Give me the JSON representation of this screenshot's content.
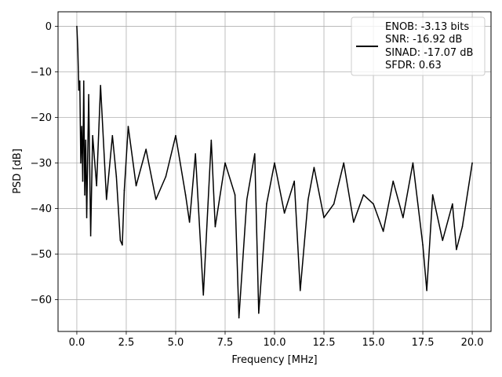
{
  "chart_data": {
    "type": "line",
    "title": "",
    "xlabel": "Frequency [MHz]",
    "ylabel": "PSD [dB]",
    "xlim": [
      -0.95,
      20.95
    ],
    "ylim": [
      -67.0,
      3.2
    ],
    "x_ticks": [
      0.0,
      2.5,
      5.0,
      7.5,
      10.0,
      12.5,
      15.0,
      17.5,
      20.0
    ],
    "x_tick_labels": [
      "0.0",
      "2.5",
      "5.0",
      "7.5",
      "10.0",
      "12.5",
      "15.0",
      "17.5",
      "20.0"
    ],
    "y_ticks": [
      0,
      -10,
      -20,
      -30,
      -40,
      -50,
      -60
    ],
    "y_tick_labels": [
      "0",
      "−10",
      "−20",
      "−30",
      "−40",
      "−50",
      "−60"
    ],
    "grid": true,
    "legend_position": "top-right",
    "line_color": "#000000",
    "series": [
      {
        "name": "ENOB: -3.13 bits",
        "legend_lines": [
          "ENOB: -3.13 bits",
          "SNR: -16.92 dB",
          "SINAD: -17.07 dB",
          "SFDR: 0.63"
        ],
        "x": [
          0.0,
          0.05,
          0.1,
          0.15,
          0.2,
          0.25,
          0.3,
          0.35,
          0.4,
          0.45,
          0.5,
          0.6,
          0.7,
          0.8,
          1.0,
          1.2,
          1.5,
          1.8,
          2.0,
          2.2,
          2.3,
          2.4,
          2.6,
          3.0,
          3.5,
          4.0,
          4.5,
          5.0,
          5.5,
          5.7,
          6.0,
          6.4,
          6.8,
          7.0,
          7.5,
          8.0,
          8.2,
          8.6,
          9.0,
          9.2,
          9.6,
          10.0,
          10.5,
          11.0,
          11.3,
          11.7,
          12.0,
          12.5,
          13.0,
          13.5,
          14.0,
          14.5,
          15.0,
          15.5,
          16.0,
          16.5,
          17.0,
          17.5,
          17.7,
          18.0,
          18.5,
          19.0,
          19.2,
          19.5,
          20.0
        ],
        "y": [
          0.0,
          -5.0,
          -14.0,
          -12.0,
          -30.0,
          -22.0,
          -34.0,
          -12.0,
          -37.0,
          -25.0,
          -42.0,
          -15.0,
          -46.0,
          -24.0,
          -35.0,
          -13.0,
          -38.0,
          -24.0,
          -33.0,
          -47.0,
          -48.0,
          -36.0,
          -22.0,
          -35.0,
          -27.0,
          -38.0,
          -33.0,
          -24.0,
          -37.0,
          -43.0,
          -28.0,
          -59.0,
          -25.0,
          -44.0,
          -30.0,
          -37.0,
          -64.0,
          -38.0,
          -28.0,
          -63.0,
          -39.0,
          -30.0,
          -41.0,
          -34.0,
          -58.0,
          -38.0,
          -31.0,
          -42.0,
          -39.0,
          -30.0,
          -43.0,
          -37.0,
          -39.0,
          -45.0,
          -34.0,
          -42.0,
          -30.0,
          -48.0,
          -58.0,
          -37.0,
          -47.0,
          -39.0,
          -49.0,
          -44.0,
          -30.0
        ]
      }
    ]
  }
}
